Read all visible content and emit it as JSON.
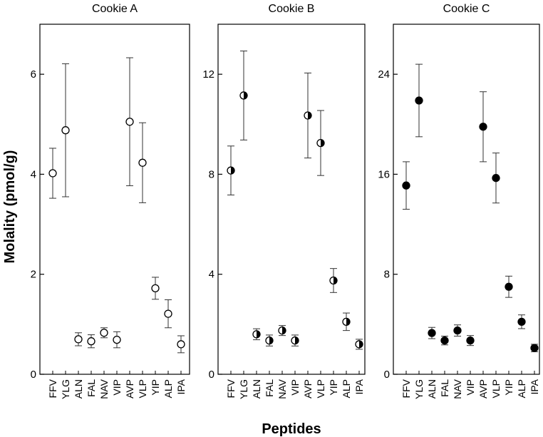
{
  "chart_data": {
    "type": "scatter",
    "ylabel": "Molality (pmol/g)",
    "xlabel": "Peptides",
    "categories": [
      "FFV",
      "YLG",
      "ALN",
      "FAL",
      "NAV",
      "VIP",
      "AVP",
      "VLP",
      "YIP",
      "ALP",
      "IPA"
    ],
    "panels": [
      {
        "title": "Cookie A",
        "marker": "open",
        "ylim": [
          0,
          7
        ],
        "yticks": [
          0,
          2,
          4,
          6
        ],
        "values": [
          4.02,
          4.88,
          0.7,
          0.66,
          0.83,
          0.69,
          5.05,
          4.23,
          1.72,
          1.21,
          0.6
        ],
        "errors": [
          0.5,
          1.33,
          0.13,
          0.13,
          0.1,
          0.16,
          1.28,
          0.8,
          0.22,
          0.28,
          0.17
        ]
      },
      {
        "title": "Cookie B",
        "marker": "half",
        "ylim": [
          0,
          14
        ],
        "yticks": [
          0,
          4,
          8,
          12
        ],
        "values": [
          8.15,
          11.15,
          1.6,
          1.35,
          1.75,
          1.35,
          10.35,
          9.25,
          3.75,
          2.1,
          1.2
        ],
        "errors": [
          0.98,
          1.78,
          0.22,
          0.22,
          0.2,
          0.22,
          1.7,
          1.3,
          0.48,
          0.35,
          0.2
        ]
      },
      {
        "title": "Cookie C",
        "marker": "filled",
        "ylim": [
          0,
          28
        ],
        "yticks": [
          0,
          8,
          16,
          24
        ],
        "values": [
          15.1,
          21.9,
          3.3,
          2.7,
          3.5,
          2.7,
          19.8,
          15.7,
          7.0,
          4.2,
          2.1
        ],
        "errors": [
          1.9,
          2.9,
          0.45,
          0.35,
          0.45,
          0.4,
          2.8,
          2.0,
          0.85,
          0.55,
          0.3
        ]
      }
    ]
  }
}
